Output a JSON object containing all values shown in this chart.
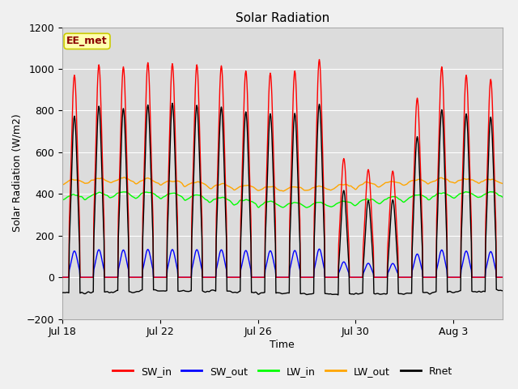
{
  "title": "Solar Radiation",
  "xlabel": "Time",
  "ylabel": "Solar Radiation (W/m2)",
  "ylim": [
    -200,
    1200
  ],
  "yticks": [
    -200,
    0,
    200,
    400,
    600,
    800,
    1000,
    1200
  ],
  "xtick_labels": [
    "Jul 18",
    "Jul 22",
    "Jul 26",
    "Jul 30",
    "Aug 3"
  ],
  "xtick_positions": [
    0,
    4,
    8,
    12,
    16
  ],
  "annotation_text": "EE_met",
  "colors": {
    "SW_in": "#ff0000",
    "SW_out": "#0000ff",
    "LW_in": "#00ff00",
    "LW_out": "#ffa500",
    "Rnet": "#000000"
  },
  "fig_bg": "#f0f0f0",
  "plot_bg": "#dcdcdc",
  "num_days": 18,
  "samples_per_day": 48
}
